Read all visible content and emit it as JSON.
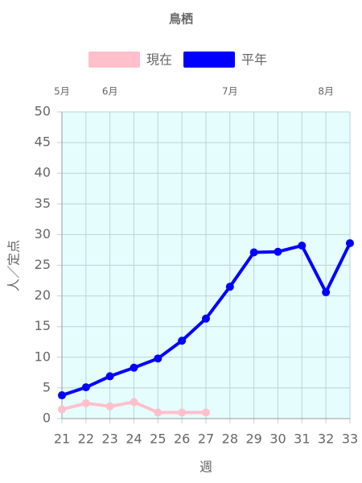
{
  "chart_data": {
    "type": "line",
    "title": "鳥栖",
    "x": [
      21,
      22,
      23,
      24,
      25,
      26,
      27,
      28,
      29,
      30,
      31,
      32,
      33
    ],
    "series": [
      {
        "name": "現在",
        "color": "#ffc0cb",
        "values": [
          1.5,
          2.5,
          2.0,
          2.7,
          1.0,
          1.0,
          1.0,
          null,
          null,
          null,
          null,
          null,
          null
        ]
      },
      {
        "name": "平年",
        "color": "#0000ff",
        "values": [
          3.8,
          5.1,
          6.9,
          8.3,
          9.8,
          12.7,
          16.3,
          21.5,
          27.1,
          27.2,
          28.2,
          20.6,
          28.6
        ]
      }
    ],
    "xlim": [
      21,
      33
    ],
    "xticks": [
      21,
      22,
      23,
      24,
      25,
      26,
      27,
      28,
      29,
      30,
      31,
      32,
      33
    ],
    "ylim": [
      0,
      50
    ],
    "yticks": [
      0,
      5,
      10,
      15,
      20,
      25,
      30,
      35,
      40,
      45,
      50
    ],
    "xlabel": "週",
    "ylabel": "人／定点",
    "month_labels": [
      {
        "x": 21,
        "label": "5月"
      },
      {
        "x": 23,
        "label": "6月"
      },
      {
        "x": 28,
        "label": "7月"
      },
      {
        "x": 32,
        "label": "8月"
      }
    ],
    "grid": true,
    "legend": "top"
  }
}
